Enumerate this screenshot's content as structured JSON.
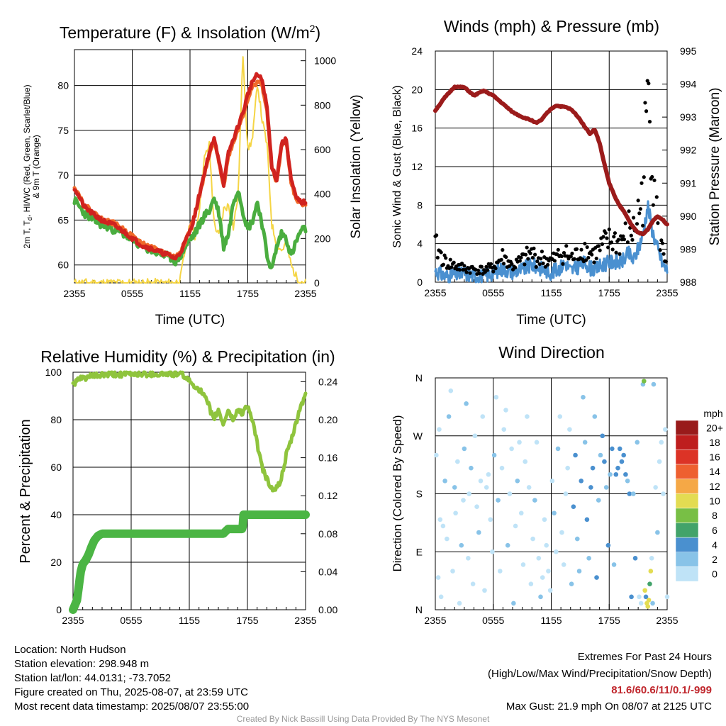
{
  "chart_data": [
    {
      "type": "line",
      "title": "Temperature (F) & Insolation (W/m²)",
      "xlabel": "Time (UTC)",
      "ylabel": "2m T, Td, HI/WC (Red, Green, Scarlet/Blue) & 9m T (Orange)",
      "ylabel_line1": "2m T, T",
      "ylabel_sub": "d",
      "ylabel_line1b": ", HI/WC (Red, Green, Scarlet/Blue)",
      "ylabel_line2": "& 9m T (Orange)",
      "y2label": "Solar Insolation (Yellow)",
      "ylim": [
        58,
        84
      ],
      "y2lim": [
        0,
        1050
      ],
      "yticks": [
        60,
        65,
        70,
        75,
        80
      ],
      "y2ticks": [
        0,
        200,
        400,
        600,
        800,
        1000
      ],
      "xticks": [
        "2355",
        "0555",
        "1155",
        "1755",
        "2355"
      ],
      "grid": true,
      "x_hours": [
        0,
        1,
        2,
        3,
        4,
        5,
        6,
        7,
        8,
        9,
        10,
        10.5,
        11,
        11.5,
        12,
        12.5,
        13,
        13.5,
        14,
        14.5,
        15,
        15.5,
        16,
        16.5,
        17,
        17.5,
        18,
        18.5,
        19,
        19.5,
        20,
        20.5,
        21,
        21.5,
        22,
        22.5,
        23,
        23.5,
        24
      ],
      "series": [
        {
          "color": "#d0231f",
          "values": [
            68.6,
            66.5,
            65.6,
            64.9,
            64.5,
            63.8,
            63,
            62.2,
            61.8,
            61.4,
            61,
            60.7,
            61.4,
            62.6,
            63.8,
            65.5,
            68,
            70.3,
            72.5,
            74,
            71.8,
            69,
            72.5,
            74,
            75.5,
            77,
            79,
            80.5,
            81.2,
            80.6,
            77.5,
            71,
            69.5,
            73.5,
            74,
            69.5,
            67.5,
            67,
            67
          ]
        },
        {
          "color": "#f06a2a",
          "values": [
            68.8,
            66.7,
            65.8,
            65,
            64.7,
            64,
            63.2,
            62.4,
            61.9,
            61.5,
            61.1,
            60.8,
            61.5,
            62.7,
            63.9,
            65.6,
            67.8,
            70,
            72.2,
            73.7,
            71.6,
            68.8,
            72.2,
            73.7,
            75.2,
            76.7,
            78.5,
            79.8,
            80.5,
            80,
            77,
            70.8,
            69.2,
            73.2,
            73.8,
            69.3,
            67.3,
            66.8,
            66.8
          ]
        },
        {
          "color": "#4aad3f",
          "values": [
            67.2,
            65.8,
            65,
            64.4,
            64,
            63.5,
            62.8,
            62.1,
            61.6,
            61.2,
            60.8,
            60.4,
            61,
            62,
            62.8,
            63.5,
            64.5,
            65.5,
            66,
            67.5,
            65.8,
            62,
            63.5,
            67,
            68.5,
            66,
            64,
            65,
            67,
            64.5,
            61,
            59.5,
            62,
            63.5,
            63,
            61,
            62.5,
            63.8,
            64
          ]
        }
      ],
      "insolation": {
        "color": "#f5d545",
        "values": [
          0,
          0,
          0,
          0,
          0,
          0,
          0,
          0,
          0,
          0,
          0,
          0,
          18,
          150,
          270,
          200,
          350,
          560,
          620,
          270,
          210,
          330,
          350,
          250,
          400,
          1030,
          600,
          650,
          900,
          730,
          620,
          260,
          180,
          145,
          180,
          80,
          30,
          10,
          0
        ]
      }
    },
    {
      "type": "line",
      "title": "Winds (mph) & Pressure (mb)",
      "xlabel": "Time (UTC)",
      "ylabel": "Sonic Wind & Gust (Blue, Black)",
      "y2label": "Station Pressure (Maroon)",
      "ylim": [
        0,
        24
      ],
      "y2lim": [
        988,
        995
      ],
      "yticks": [
        0,
        4,
        8,
        12,
        16,
        20,
        24
      ],
      "y2ticks": [
        988,
        989,
        990,
        991,
        992,
        993,
        994,
        995
      ],
      "xticks": [
        "2355",
        "0555",
        "1155",
        "1755",
        "2355"
      ],
      "grid": true,
      "x_hours": [
        0,
        1,
        2,
        3,
        4,
        5,
        6,
        7,
        8,
        9,
        10,
        10.5,
        11,
        11.5,
        12,
        12.5,
        13,
        13.5,
        14,
        14.5,
        15,
        15.5,
        16,
        16.5,
        17,
        17.5,
        18,
        18.5,
        19,
        19.5,
        20,
        20.5,
        21,
        21.5,
        22,
        22.5,
        23,
        23.5,
        24
      ],
      "pressure": {
        "color": "#9b1b1b",
        "values": [
          993.2,
          993.6,
          993.92,
          993.9,
          993.65,
          993.8,
          993.65,
          993.4,
          993.15,
          993.0,
          992.9,
          992.82,
          992.92,
          993.1,
          993.25,
          993.35,
          993.32,
          993.3,
          993.24,
          993.1,
          992.92,
          992.7,
          992.5,
          992.62,
          992.22,
          991.58,
          991.0,
          990.65,
          990.35,
          990.15,
          989.9,
          989.65,
          989.5,
          989.45,
          989.6,
          989.85,
          990.0,
          989.9,
          989.75
        ]
      },
      "wind": {
        "color": "#4a90d0",
        "values": [
          1.2,
          0.6,
          0.8,
          0.9,
          0.7,
          0.6,
          1.0,
          1.4,
          1.1,
          1.3,
          1.8,
          1.6,
          1.4,
          1.2,
          1.0,
          1.2,
          1.6,
          2.0,
          1.2,
          1.4,
          1.8,
          2.0,
          1.5,
          1.3,
          1.6,
          1.9,
          2.0,
          2.2,
          2.0,
          2.3,
          3.0,
          2.2,
          3.5,
          5.0,
          8.0,
          5.2,
          3.5,
          2.0,
          1.2
        ]
      },
      "gust": {
        "color": "#000000",
        "values": [
          4.0,
          2.2,
          1.8,
          1.5,
          1.4,
          1.3,
          1.6,
          2.8,
          1.7,
          2.4,
          3.2,
          2.5,
          2.6,
          2.4,
          2.3,
          2.6,
          3.2,
          3.1,
          2.6,
          2.8,
          3.4,
          3.6,
          3.2,
          3.0,
          3.5,
          4.2,
          4.4,
          4.6,
          4.2,
          4.9,
          6.0,
          5.4,
          7.5,
          9.5,
          21.9,
          14.0,
          6.5,
          3.5,
          2.2
        ]
      }
    },
    {
      "type": "line",
      "title": "Relative Humidity (%) & Precipitation (in)",
      "xlabel": "",
      "ylabel": "Percent & Precipitation",
      "ylim": [
        0,
        100
      ],
      "y2lim": [
        0,
        0.25
      ],
      "yticks": [
        0,
        20,
        40,
        60,
        80,
        100
      ],
      "y2ticks": [
        "0.00",
        "0.04",
        "0.08",
        "0.12",
        "0.16",
        "0.20",
        "0.24"
      ],
      "xticks": [
        "2355",
        "0555",
        "1155",
        "1755",
        "2355"
      ],
      "grid": true,
      "humidity": {
        "color": "#8fc43d",
        "x_hours": [
          0,
          0.5,
          1,
          2,
          3,
          4,
          5,
          6,
          7,
          8,
          9,
          10,
          11,
          11.5,
          12,
          13,
          13.5,
          14,
          14.5,
          15,
          15.5,
          16,
          16.5,
          17,
          17.5,
          18,
          18.5,
          19,
          19.5,
          20,
          20.5,
          21,
          21.5,
          22,
          22.5,
          23,
          23.5,
          24
        ],
        "values": [
          95,
          96.5,
          97.5,
          98.3,
          98.8,
          99,
          99.1,
          99.2,
          99.3,
          99.3,
          99.2,
          99.3,
          99.2,
          98.5,
          96,
          93,
          90,
          86,
          80,
          84,
          78,
          84,
          80,
          84,
          83,
          86,
          80,
          70,
          60,
          55,
          51,
          51,
          55,
          65,
          71,
          78,
          86,
          90
        ]
      },
      "precipitation": {
        "color": "#4bb544",
        "x_hours": [
          0,
          0.2,
          0.4,
          0.6,
          0.8,
          1.0,
          1.3,
          1.6,
          1.9,
          2.2,
          2.6,
          3.0,
          15.5,
          16.0,
          17.5,
          17.6,
          24
        ],
        "values": [
          0.0,
          0.005,
          0.01,
          0.025,
          0.04,
          0.048,
          0.052,
          0.058,
          0.066,
          0.073,
          0.078,
          0.08,
          0.08,
          0.085,
          0.085,
          0.1,
          0.1
        ]
      }
    },
    {
      "type": "scatter",
      "title": "Wind Direction",
      "xlabel": "",
      "ylabel": "Direction (Colored By Speed)",
      "yticks": [
        "N",
        "E",
        "S",
        "W",
        "N"
      ],
      "xticks": [
        "2355",
        "0555",
        "1155",
        "1755",
        "2355"
      ],
      "ylim": [
        0,
        360
      ],
      "grid": true,
      "colorbar": {
        "title": "mph",
        "labels": [
          "0",
          "2",
          "4",
          "6",
          "8",
          "10",
          "12",
          "14",
          "16",
          "18",
          "20+"
        ],
        "colors": [
          "#bfe3f7",
          "#88c3e8",
          "#4a90cf",
          "#42a36a",
          "#78bf45",
          "#e3dc52",
          "#f5a846",
          "#ee6030",
          "#dc3326",
          "#be1e1e",
          "#991b1b"
        ]
      },
      "points_x_hours": [
        0.1,
        0.3,
        0.4,
        0.5,
        0.6,
        0.8,
        1.0,
        1.2,
        1.4,
        1.6,
        1.8,
        2.0,
        2.1,
        2.3,
        2.5,
        2.7,
        2.9,
        3.0,
        3.2,
        3.4,
        3.5,
        3.7,
        3.9,
        4.1,
        4.3,
        4.5,
        4.7,
        4.9,
        5.1,
        5.3,
        5.5,
        5.7,
        5.9,
        6.1,
        6.3,
        6.5,
        6.7,
        6.9,
        7.1,
        7.3,
        7.5,
        7.7,
        7.9,
        8.1,
        8.3,
        8.5,
        8.7,
        8.9,
        9.1,
        9.3,
        9.5,
        9.7,
        9.9,
        10.1,
        10.3,
        10.5,
        10.7,
        10.9,
        11.1,
        11.3,
        11.5,
        11.7,
        11.9,
        12.1,
        12.3,
        12.5,
        12.7,
        12.9,
        13.1,
        13.3,
        13.5,
        13.7,
        13.9,
        14.1,
        14.3,
        14.5,
        14.7,
        14.9,
        15.1,
        15.3,
        15.5,
        15.7,
        15.9,
        16.1,
        16.3,
        16.5,
        16.7,
        16.9,
        17.1,
        17.3,
        17.5,
        17.7,
        17.9,
        18.1,
        18.3,
        18.5,
        18.7,
        18.9,
        19.1,
        19.3,
        19.5,
        19.7,
        19.9,
        20.1,
        20.3,
        20.5,
        20.7,
        20.9,
        21.1,
        21.3,
        21.5,
        21.6,
        21.7,
        21.8,
        21.9,
        22.0,
        22.1,
        22.2,
        22.3,
        22.4,
        22.5,
        22.6,
        22.8,
        23.0,
        23.2,
        23.4,
        23.6,
        23.8,
        24.0
      ],
      "points_dir": [
        240,
        50,
        280,
        140,
        20,
        130,
        200,
        110,
        300,
        340,
        60,
        190,
        150,
        230,
        10,
        100,
        170,
        250,
        320,
        80,
        180,
        220,
        40,
        270,
        160,
        120,
        200,
        300,
        30,
        190,
        210,
        140,
        90,
        240,
        330,
        170,
        60,
        220,
        280,
        310,
        100,
        180,
        250,
        10,
        130,
        200,
        260,
        150,
        70,
        230,
        300,
        190,
        40,
        110,
        170,
        260,
        80,
        20,
        50,
        140,
        100,
        60,
        30,
        200,
        150,
        90,
        250,
        300,
        120,
        70,
        180,
        220,
        280,
        40,
        160,
        240,
        110,
        60,
        200,
        330,
        260,
        140,
        80,
        190,
        220,
        300,
        50,
        170,
        240,
        270,
        230,
        190,
        100,
        210,
        250,
        70,
        210,
        220,
        250,
        230,
        240,
        210,
        200,
        180,
        20,
        180,
        80,
        260,
        20,
        10,
        350,
        355,
        30,
        20,
        10,
        5,
        15,
        40,
        60,
        80,
        10,
        350,
        190,
        120,
        230,
        260,
        180,
        280,
        20
      ]
    }
  ],
  "footer": {
    "location": "Location: North Hudson",
    "elevation": "Station elevation: 298.948 m",
    "latlon": "Station lat/lon: 44.0131; -73.7052",
    "created": "Figure created on Thu, 2025-08-07, at 23:59 UTC",
    "recent": "Most recent data timestamp: 2025/08/07 23:55:00",
    "extremes_title": "Extremes For Past 24 Hours",
    "extremes_sub": "(High/Low/Max Wind/Precipitation/Snow Depth)",
    "extremes_values": "81.6/60.6/11/0.1/-999",
    "extremes_color": "#c0272d",
    "max_gust": "Max Gust: 21.9 mph On 08/07 at 2125 UTC",
    "credit": "Created By Nick Bassill Using Data Provided By The NYS Mesonet"
  }
}
